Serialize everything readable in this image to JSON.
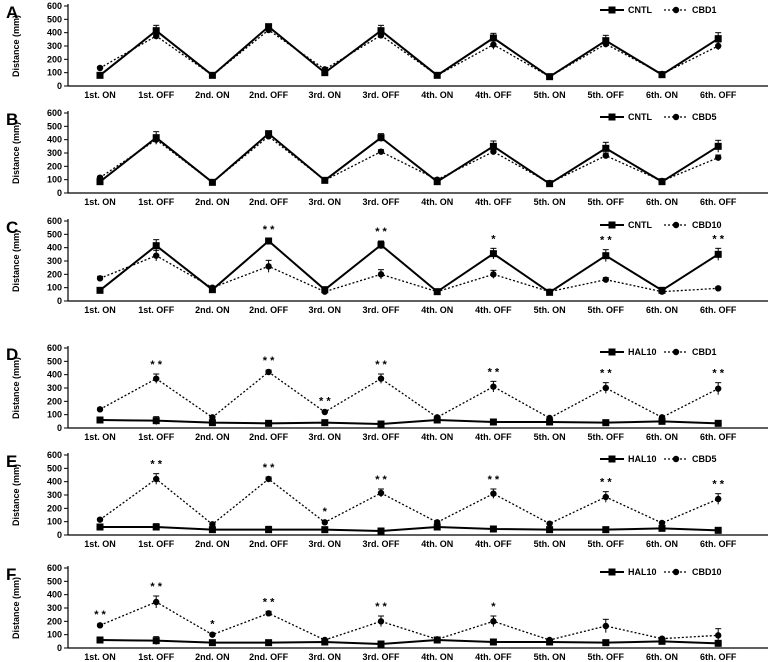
{
  "chart_data": [
    {
      "type": "line",
      "panel": "A",
      "ylabel": "Distance (mm)",
      "ylim": [
        0,
        600
      ],
      "yticks": [
        0,
        100,
        200,
        300,
        400,
        500,
        600
      ],
      "categories": [
        "1st. ON",
        "1st. OFF",
        "2nd. ON",
        "2nd. OFF",
        "3rd. ON",
        "3rd. OFF",
        "4th. ON",
        "4th. OFF",
        "5th. ON",
        "5th. OFF",
        "6th. ON",
        "6th. OFF"
      ],
      "legend_position": "top-right",
      "series": [
        {
          "name": "CNTL",
          "style": "solid",
          "marker": "square",
          "values": [
            80,
            415,
            80,
            445,
            100,
            415,
            80,
            360,
            70,
            340,
            85,
            355
          ],
          "errors": [
            10,
            40,
            5,
            15,
            15,
            40,
            10,
            35,
            5,
            40,
            5,
            45
          ]
        },
        {
          "name": "CBD1",
          "style": "dotted",
          "marker": "diamond",
          "values": [
            135,
            375,
            80,
            420,
            125,
            380,
            80,
            310,
            70,
            315,
            90,
            300
          ],
          "errors": [
            10,
            25,
            5,
            15,
            10,
            25,
            5,
            35,
            5,
            25,
            5,
            30
          ]
        }
      ],
      "annotations": []
    },
    {
      "type": "line",
      "panel": "B",
      "ylabel": "Distance (mm)",
      "ylim": [
        0,
        600
      ],
      "yticks": [
        0,
        100,
        200,
        300,
        400,
        500,
        600
      ],
      "categories": [
        "1st. ON",
        "1st. OFF",
        "2nd. ON",
        "2nd. OFF",
        "3rd. ON",
        "3rd. OFF",
        "4th. ON",
        "4th. OFF",
        "5th. ON",
        "5th. OFF",
        "6th. ON",
        "6th. OFF"
      ],
      "legend_position": "top-right",
      "series": [
        {
          "name": "CNTL",
          "style": "solid",
          "marker": "square",
          "values": [
            85,
            415,
            80,
            445,
            95,
            415,
            85,
            350,
            70,
            335,
            85,
            350
          ],
          "errors": [
            10,
            45,
            5,
            20,
            10,
            30,
            10,
            40,
            5,
            45,
            5,
            45
          ]
        },
        {
          "name": "CBD5",
          "style": "dotted",
          "marker": "diamond",
          "values": [
            115,
            400,
            80,
            425,
            95,
            310,
            100,
            310,
            75,
            280,
            90,
            265
          ],
          "errors": [
            10,
            35,
            5,
            20,
            10,
            15,
            10,
            20,
            5,
            20,
            5,
            20
          ]
        }
      ],
      "annotations": []
    },
    {
      "type": "line",
      "panel": "C",
      "ylabel": "Distance (mm)",
      "ylim": [
        0,
        600
      ],
      "yticks": [
        0,
        100,
        200,
        300,
        400,
        500,
        600
      ],
      "categories": [
        "1st. ON",
        "1st. OFF",
        "2nd. ON",
        "2nd. OFF",
        "3rd. ON",
        "3rd. OFF",
        "4th. ON",
        "4th. OFF",
        "5th. ON",
        "5th. OFF",
        "6th. ON",
        "6th. OFF"
      ],
      "legend_position": "top-right",
      "series": [
        {
          "name": "CNTL",
          "style": "solid",
          "marker": "square",
          "values": [
            80,
            415,
            85,
            450,
            85,
            420,
            70,
            355,
            65,
            340,
            80,
            350
          ],
          "errors": [
            10,
            45,
            5,
            15,
            10,
            30,
            10,
            40,
            5,
            45,
            5,
            45
          ]
        },
        {
          "name": "CBD10",
          "style": "dotted",
          "marker": "diamond",
          "values": [
            170,
            340,
            100,
            260,
            70,
            200,
            70,
            200,
            70,
            160,
            70,
            95
          ],
          "errors": [
            15,
            40,
            10,
            45,
            5,
            35,
            5,
            30,
            5,
            15,
            5,
            10
          ]
        }
      ],
      "annotations": [
        {
          "category": "2nd. OFF",
          "text": "* *"
        },
        {
          "category": "3rd. OFF",
          "text": "* *"
        },
        {
          "category": "4th. OFF",
          "text": "*"
        },
        {
          "category": "5th. OFF",
          "text": "* *"
        },
        {
          "category": "6th. OFF",
          "text": "* *"
        }
      ]
    },
    {
      "type": "line",
      "panel": "D",
      "ylabel": "Distance (mm)",
      "ylim": [
        0,
        600
      ],
      "yticks": [
        0,
        100,
        200,
        300,
        400,
        500,
        600
      ],
      "categories": [
        "1st. ON",
        "1st. OFF",
        "2nd. ON",
        "2nd. OFF",
        "3rd. ON",
        "3rd. OFF",
        "4th. ON",
        "4th. OFF",
        "5th. ON",
        "5th. OFF",
        "6th. ON",
        "6th. OFF"
      ],
      "legend_position": "top-right",
      "series": [
        {
          "name": "HAL10",
          "style": "solid",
          "marker": "square",
          "values": [
            60,
            55,
            40,
            35,
            40,
            30,
            60,
            45,
            45,
            40,
            50,
            35
          ],
          "errors": [
            10,
            30,
            5,
            15,
            10,
            15,
            15,
            10,
            10,
            15,
            10,
            10
          ]
        },
        {
          "name": "CBD1",
          "style": "dotted",
          "marker": "diamond",
          "values": [
            140,
            370,
            80,
            420,
            120,
            370,
            80,
            310,
            75,
            300,
            80,
            295
          ],
          "errors": [
            10,
            35,
            5,
            15,
            10,
            35,
            10,
            40,
            5,
            40,
            5,
            45
          ]
        }
      ],
      "annotations": [
        {
          "category": "1st. OFF",
          "text": "* *"
        },
        {
          "category": "2nd. OFF",
          "text": "* *"
        },
        {
          "category": "3rd. ON",
          "text": "* *"
        },
        {
          "category": "3rd. OFF",
          "text": "* *"
        },
        {
          "category": "4th. OFF",
          "text": "* *"
        },
        {
          "category": "5th. OFF",
          "text": "* *"
        },
        {
          "category": "6th. OFF",
          "text": "* *"
        }
      ]
    },
    {
      "type": "line",
      "panel": "E",
      "ylabel": "Distance (mm)",
      "ylim": [
        0,
        600
      ],
      "yticks": [
        0,
        100,
        200,
        300,
        400,
        500,
        600
      ],
      "categories": [
        "1st. ON",
        "1st. OFF",
        "2nd. ON",
        "2nd. OFF",
        "3rd. ON",
        "3rd. OFF",
        "4th. ON",
        "4th. OFF",
        "5th. ON",
        "5th. OFF",
        "6th. ON",
        "6th. OFF"
      ],
      "legend_position": "top-right",
      "series": [
        {
          "name": "HAL10",
          "style": "solid",
          "marker": "square",
          "values": [
            60,
            60,
            40,
            40,
            40,
            30,
            60,
            45,
            40,
            40,
            50,
            35
          ],
          "errors": [
            10,
            25,
            5,
            25,
            10,
            15,
            15,
            10,
            10,
            15,
            10,
            10
          ]
        },
        {
          "name": "CBD5",
          "style": "dotted",
          "marker": "diamond",
          "values": [
            115,
            420,
            80,
            420,
            95,
            315,
            95,
            310,
            85,
            285,
            90,
            270
          ],
          "errors": [
            10,
            40,
            5,
            15,
            10,
            30,
            10,
            35,
            5,
            40,
            5,
            40
          ]
        }
      ],
      "annotations": [
        {
          "category": "1st. OFF",
          "text": "* *"
        },
        {
          "category": "2nd. OFF",
          "text": "* *"
        },
        {
          "category": "3rd. ON",
          "text": "*"
        },
        {
          "category": "3rd. OFF",
          "text": "* *"
        },
        {
          "category": "4th. OFF",
          "text": "* *"
        },
        {
          "category": "5th. OFF",
          "text": "* *"
        },
        {
          "category": "6th. OFF",
          "text": "* *"
        }
      ]
    },
    {
      "type": "line",
      "panel": "F",
      "ylabel": "Distance (mm)",
      "ylim": [
        0,
        600
      ],
      "yticks": [
        0,
        100,
        200,
        300,
        400,
        500,
        600
      ],
      "categories": [
        "1st. ON",
        "1st. OFF",
        "2nd. ON",
        "2nd. OFF",
        "3rd. ON",
        "3rd. OFF",
        "4th. ON",
        "4th. OFF",
        "5th. ON",
        "5th. OFF",
        "6th. ON",
        "6th. OFF"
      ],
      "legend_position": "top-right",
      "series": [
        {
          "name": "HAL10",
          "style": "solid",
          "marker": "square",
          "values": [
            60,
            55,
            40,
            40,
            45,
            30,
            60,
            45,
            45,
            40,
            50,
            35
          ],
          "errors": [
            10,
            30,
            5,
            20,
            10,
            15,
            10,
            10,
            10,
            15,
            10,
            10
          ]
        },
        {
          "name": "CBD10",
          "style": "dotted",
          "marker": "diamond",
          "values": [
            170,
            345,
            100,
            260,
            60,
            200,
            65,
            200,
            60,
            165,
            70,
            95
          ],
          "errors": [
            10,
            45,
            10,
            15,
            5,
            40,
            5,
            40,
            5,
            50,
            5,
            50
          ]
        }
      ],
      "annotations": [
        {
          "category": "1st. ON",
          "text": "* *"
        },
        {
          "category": "1st. OFF",
          "text": "* *"
        },
        {
          "category": "2nd. ON",
          "text": "*"
        },
        {
          "category": "2nd. OFF",
          "text": "* *"
        },
        {
          "category": "3rd. OFF",
          "text": "* *"
        },
        {
          "category": "4th. OFF",
          "text": "*"
        }
      ]
    }
  ]
}
